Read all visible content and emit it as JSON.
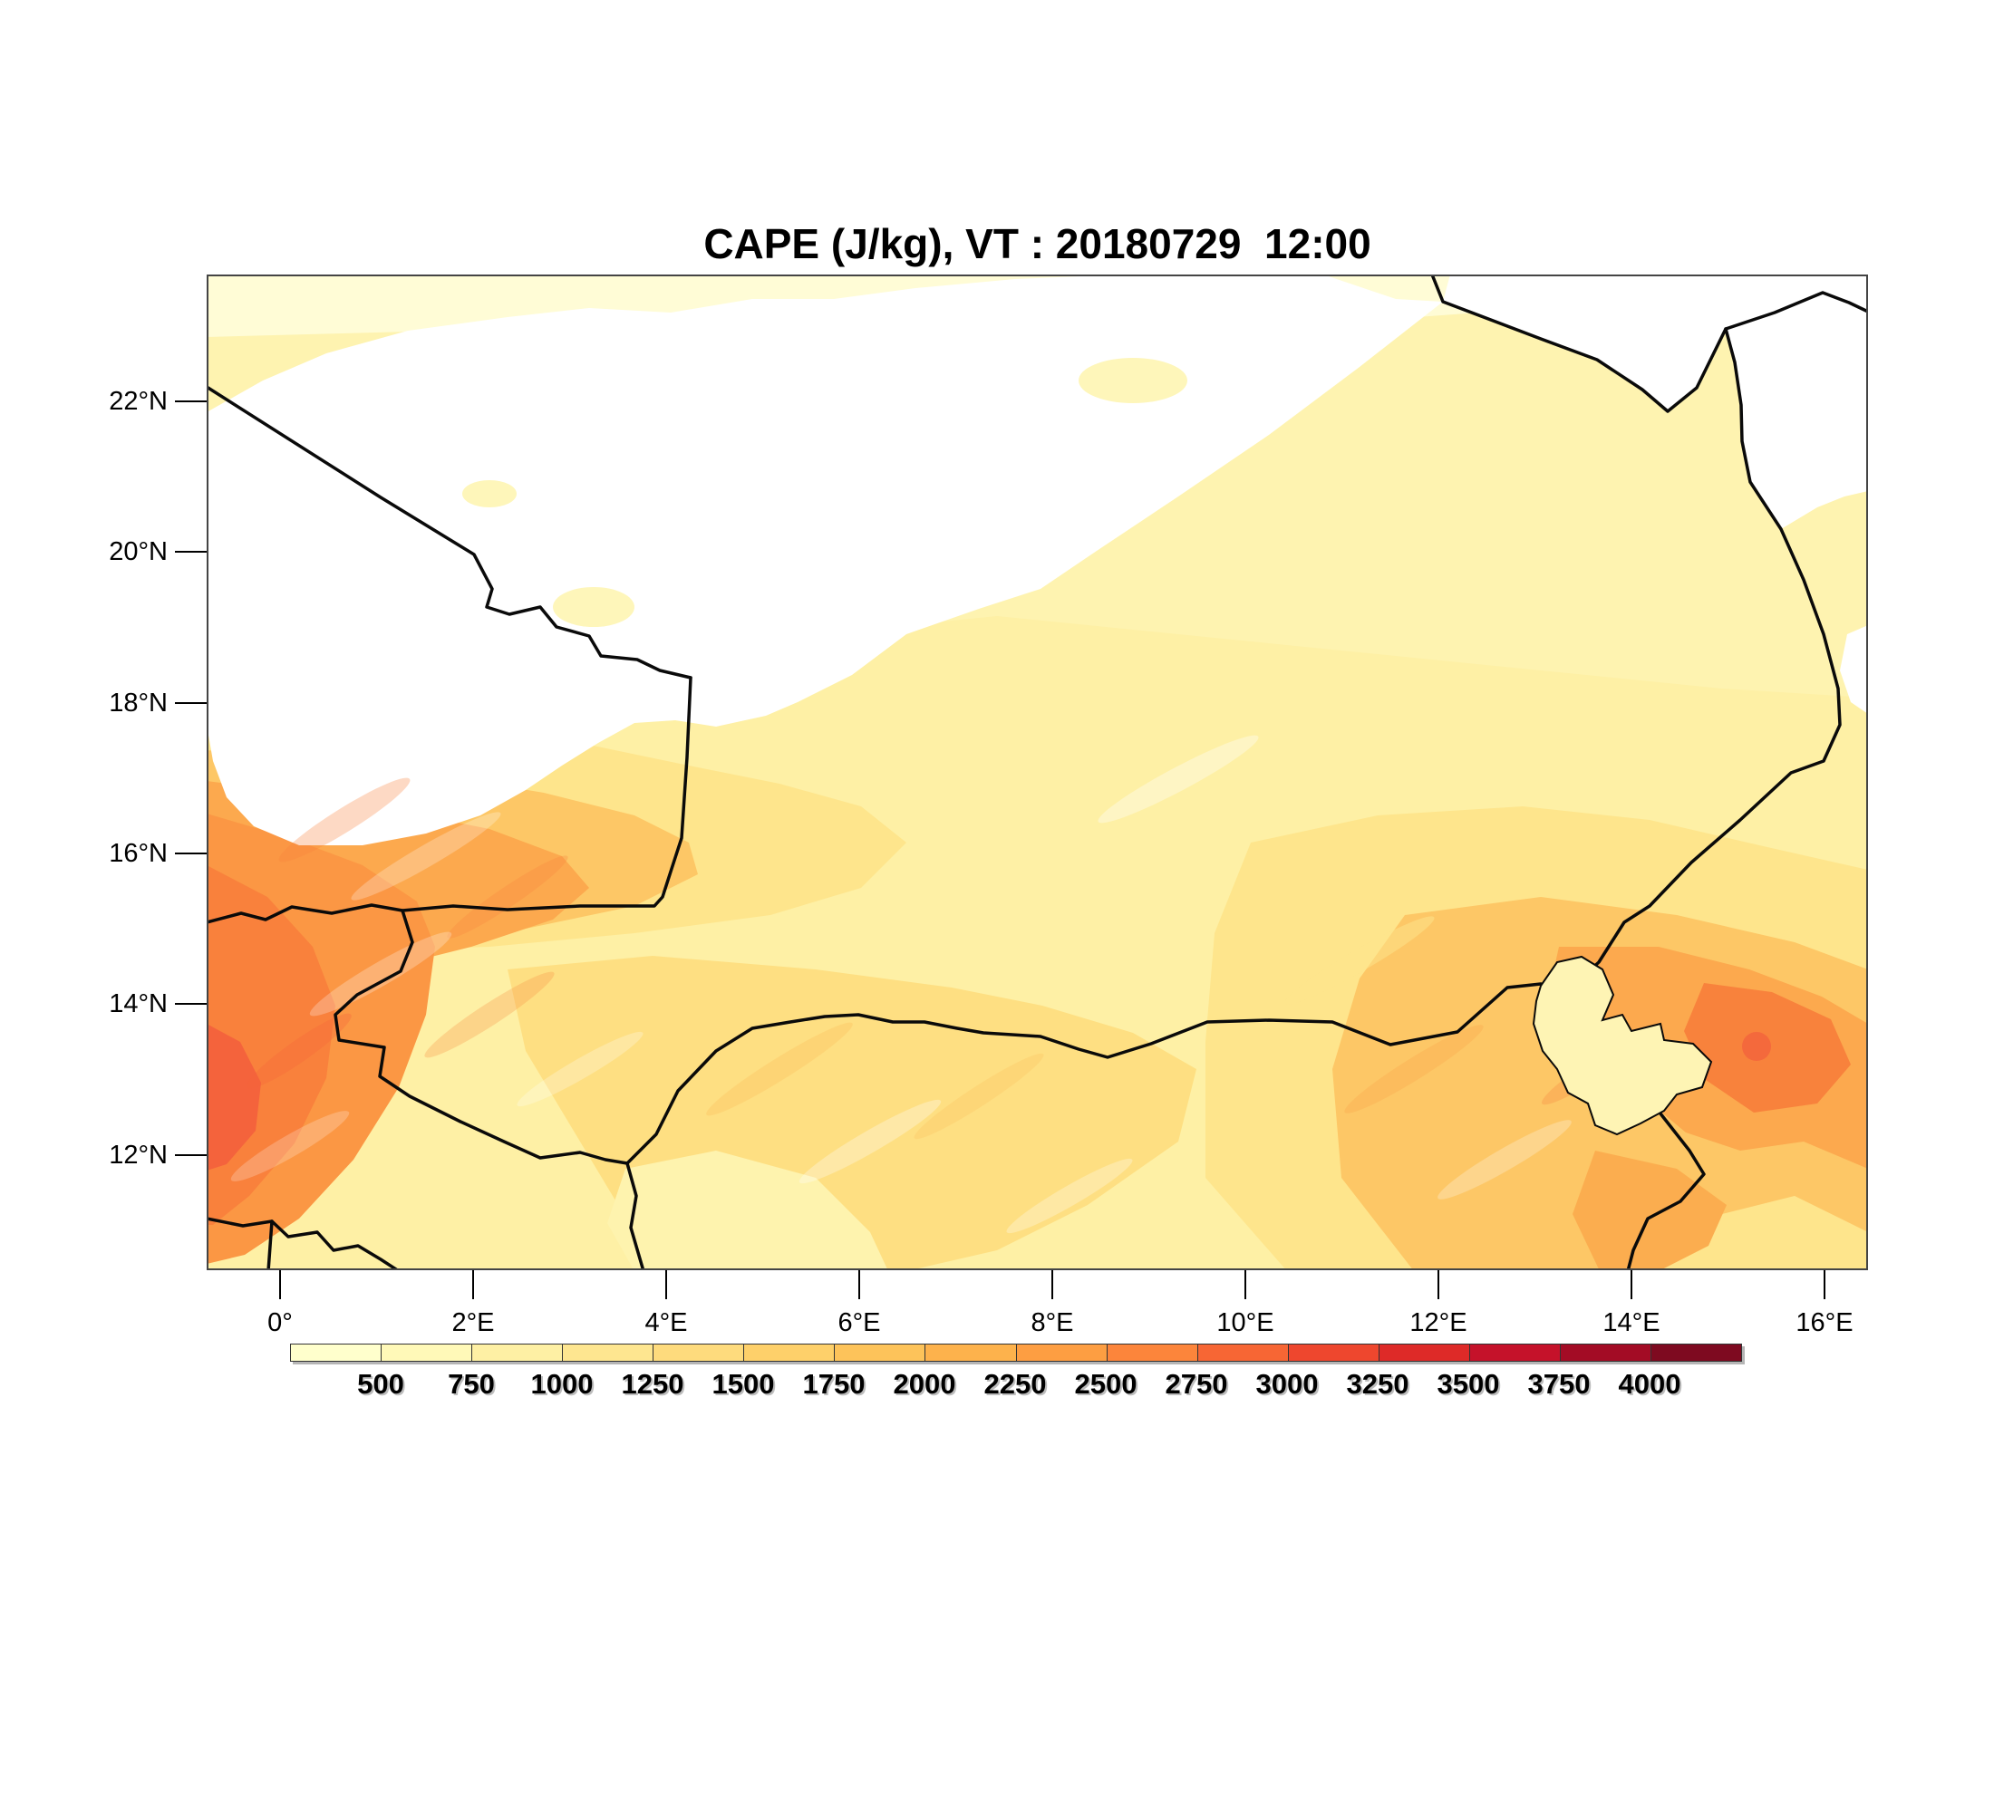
{
  "title": "CAPE (J/kg), VT : 20180729  12:00",
  "map": {
    "lat_ticks": [
      "22°N",
      "20°N",
      "18°N",
      "16°N",
      "14°N",
      "12°N"
    ],
    "lon_ticks": [
      "0°",
      "2°E",
      "4°E",
      "6°E",
      "8°E",
      "10°E",
      "12°E",
      "14°E",
      "16°E"
    ]
  },
  "colorbar": {
    "labels": [
      "500",
      "750",
      "1000",
      "1250",
      "1500",
      "1750",
      "2000",
      "2250",
      "2500",
      "2750",
      "3000",
      "3250",
      "3500",
      "3750",
      "4000"
    ],
    "colors": [
      "#FFFFCC",
      "#FFF9B8",
      "#FEF0A4",
      "#FEE690",
      "#FEDB7D",
      "#FED06A",
      "#FDC35A",
      "#FDB24C",
      "#FD9E42",
      "#FC853B",
      "#F76634",
      "#EE472E",
      "#DE2A28",
      "#C5122A",
      "#A30C25",
      "#7E0A20"
    ]
  },
  "chart_data": {
    "type": "heatmap",
    "title": "CAPE (J/kg), VT : 20180729  12:00",
    "variable": "CAPE",
    "units": "J/kg",
    "valid_time": "20180729 12:00",
    "x_axis": {
      "label": "longitude",
      "tick_labels": [
        "0°",
        "2°E",
        "4°E",
        "6°E",
        "8°E",
        "10°E",
        "12°E",
        "14°E",
        "16°E"
      ],
      "range_deg_east": [
        -0.75,
        16.45
      ]
    },
    "y_axis": {
      "label": "latitude",
      "tick_labels": [
        "12°N",
        "14°N",
        "16°N",
        "18°N",
        "20°N",
        "22°N"
      ],
      "range_deg_north": [
        10.5,
        23.7
      ]
    },
    "colorbar_boundaries": [
      500,
      750,
      1000,
      1250,
      1500,
      1750,
      2000,
      2250,
      2500,
      2750,
      3000,
      3250,
      3500,
      3750,
      4000
    ],
    "n_color_segments": 16,
    "palette": [
      "#FFFFCC",
      "#FFF9B8",
      "#FEF0A4",
      "#FEE690",
      "#FEDB7D",
      "#FED06A",
      "#FDC35A",
      "#FDB24C",
      "#FD9E42",
      "#FC853B",
      "#F76634",
      "#EE472E",
      "#DE2A28",
      "#C5122A",
      "#A30C25",
      "#7E0A20"
    ],
    "legend_position": "bottom",
    "grid": false,
    "observed_field_features": [
      {
        "area": "northern Sahara belt, ~18.5-23.5N across map",
        "cape_reading": "near zero / below lowest shaded level (white)"
      },
      {
        "area": "far north strip along top edge",
        "cape_reading": "up to ~500 (pale yellow)"
      },
      {
        "area": "west band ~0-4E, 15-17.5N",
        "cape_reading": "~1250-2250 (orange band)"
      },
      {
        "area": "far southwest ~-0.7-1.5E, 11-14N",
        "cape_reading": "~2000-2750 (strongest maximum)"
      },
      {
        "area": "central south 5-12E, 11-15N",
        "cape_reading": "~750-1500 (amber with streaks)"
      },
      {
        "area": "east around and beyond Lake Chad 13.5-16.5E, 11-14.5N",
        "cape_reading": "~1250-2500 (secondary maximum east of Lake Chad)"
      },
      {
        "area": "central Niger 8-12E, 14-17N",
        "cape_reading": "~500-750 (pale yellow)"
      }
    ],
    "overlays": [
      "country borders (Algeria, Mali, Niger, Libya, Chad, Nigeria, Benin, Burkina Faso)",
      "Lake Chad outline"
    ]
  }
}
